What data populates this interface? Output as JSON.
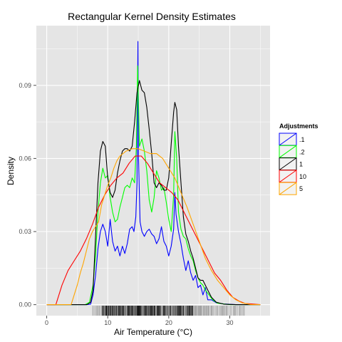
{
  "chart_data": {
    "type": "line",
    "title": "Rectangular Kernel Density Estimates",
    "xlabel": "Air Temperature (°C)",
    "ylabel": "Density",
    "xlim": [
      -1.7,
      36.6
    ],
    "ylim": [
      -0.0045,
      0.1145
    ],
    "x_ticks": [
      0,
      10,
      20,
      30
    ],
    "y_ticks": [
      0.0,
      0.03,
      0.06,
      0.09
    ],
    "y_tick_labels": [
      "0.00",
      "0.03",
      "0.06",
      "0.09"
    ],
    "grid": true,
    "legend": {
      "title": "Adjustments",
      "placement": "right"
    },
    "rug": {
      "x_range": [
        7.5,
        32.5
      ],
      "dense_range": [
        9,
        24
      ]
    },
    "series": [
      {
        "name": ".1",
        "color": "#0000ff",
        "points": [
          [
            0,
            0
          ],
          [
            6.5,
            0
          ],
          [
            7.2,
            0.0002
          ],
          [
            7.6,
            0.004
          ],
          [
            8.0,
            0.012
          ],
          [
            8.4,
            0.023
          ],
          [
            8.8,
            0.03
          ],
          [
            9.2,
            0.033
          ],
          [
            9.6,
            0.03
          ],
          [
            10.0,
            0.024
          ],
          [
            10.4,
            0.035
          ],
          [
            10.8,
            0.026
          ],
          [
            11.2,
            0.022
          ],
          [
            11.6,
            0.024
          ],
          [
            12.0,
            0.02
          ],
          [
            12.4,
            0.024
          ],
          [
            12.8,
            0.021
          ],
          [
            13.2,
            0.025
          ],
          [
            13.6,
            0.031
          ],
          [
            14.0,
            0.032
          ],
          [
            14.3,
            0.03
          ],
          [
            14.6,
            0.036
          ],
          [
            14.8,
            0.05
          ],
          [
            14.95,
            0.108
          ],
          [
            15.05,
            0.06
          ],
          [
            15.3,
            0.034
          ],
          [
            15.6,
            0.03
          ],
          [
            16.0,
            0.028
          ],
          [
            16.4,
            0.03
          ],
          [
            16.8,
            0.031
          ],
          [
            17.2,
            0.029
          ],
          [
            17.6,
            0.028
          ],
          [
            18.0,
            0.025
          ],
          [
            18.4,
            0.027
          ],
          [
            18.8,
            0.032
          ],
          [
            19.2,
            0.026
          ],
          [
            19.6,
            0.024
          ],
          [
            20.0,
            0.02
          ],
          [
            20.4,
            0.024
          ],
          [
            20.8,
            0.031
          ],
          [
            21.0,
            0.046
          ],
          [
            21.2,
            0.037
          ],
          [
            21.6,
            0.03
          ],
          [
            22.0,
            0.025
          ],
          [
            22.4,
            0.019
          ],
          [
            22.8,
            0.014
          ],
          [
            23.2,
            0.018
          ],
          [
            23.6,
            0.013
          ],
          [
            24.0,
            0.01
          ],
          [
            24.4,
            0.012
          ],
          [
            24.8,
            0.007
          ],
          [
            25.2,
            0.008
          ],
          [
            25.6,
            0.004
          ],
          [
            26.0,
            0.007
          ],
          [
            26.4,
            0.002
          ],
          [
            27.0,
            0.002
          ],
          [
            27.8,
            0.0008
          ],
          [
            29.0,
            0.0003
          ],
          [
            31.0,
            0
          ],
          [
            35,
            0
          ]
        ]
      },
      {
        "name": ".2",
        "color": "#00ff00",
        "points": [
          [
            0,
            0
          ],
          [
            6.3,
            0
          ],
          [
            7.0,
            0.001
          ],
          [
            7.6,
            0.008
          ],
          [
            8.0,
            0.02
          ],
          [
            8.4,
            0.038
          ],
          [
            8.8,
            0.05
          ],
          [
            9.2,
            0.056
          ],
          [
            9.6,
            0.052
          ],
          [
            10.0,
            0.053
          ],
          [
            10.4,
            0.044
          ],
          [
            10.8,
            0.038
          ],
          [
            11.2,
            0.034
          ],
          [
            11.6,
            0.035
          ],
          [
            12.0,
            0.04
          ],
          [
            12.4,
            0.044
          ],
          [
            12.8,
            0.048
          ],
          [
            13.2,
            0.049
          ],
          [
            13.6,
            0.048
          ],
          [
            14.0,
            0.052
          ],
          [
            14.4,
            0.05
          ],
          [
            14.7,
            0.065
          ],
          [
            14.9,
            0.098
          ],
          [
            15.2,
            0.065
          ],
          [
            15.6,
            0.068
          ],
          [
            16.0,
            0.063
          ],
          [
            16.4,
            0.055
          ],
          [
            16.8,
            0.043
          ],
          [
            17.2,
            0.038
          ],
          [
            17.6,
            0.044
          ],
          [
            18.0,
            0.055
          ],
          [
            18.4,
            0.052
          ],
          [
            18.8,
            0.047
          ],
          [
            19.2,
            0.048
          ],
          [
            19.6,
            0.042
          ],
          [
            20.0,
            0.035
          ],
          [
            20.4,
            0.03
          ],
          [
            20.8,
            0.045
          ],
          [
            21.0,
            0.071
          ],
          [
            21.3,
            0.06
          ],
          [
            21.6,
            0.038
          ],
          [
            22.0,
            0.031
          ],
          [
            22.4,
            0.028
          ],
          [
            22.8,
            0.027
          ],
          [
            23.2,
            0.023
          ],
          [
            23.6,
            0.02
          ],
          [
            24.0,
            0.018
          ],
          [
            24.4,
            0.014
          ],
          [
            24.8,
            0.011
          ],
          [
            25.2,
            0.009
          ],
          [
            25.6,
            0.008
          ],
          [
            26.0,
            0.006
          ],
          [
            26.6,
            0.004
          ],
          [
            27.2,
            0.002
          ],
          [
            28.0,
            0.0006
          ],
          [
            30.0,
            0
          ],
          [
            35,
            0
          ]
        ]
      },
      {
        "name": "1",
        "color": "#000000",
        "points": [
          [
            0,
            0
          ],
          [
            6.6,
            0
          ],
          [
            7.2,
            0.001
          ],
          [
            7.6,
            0.006
          ],
          [
            8.0,
            0.028
          ],
          [
            8.4,
            0.05
          ],
          [
            8.8,
            0.063
          ],
          [
            9.2,
            0.067
          ],
          [
            9.6,
            0.065
          ],
          [
            10.0,
            0.052
          ],
          [
            10.4,
            0.046
          ],
          [
            10.8,
            0.044
          ],
          [
            11.2,
            0.047
          ],
          [
            11.6,
            0.054
          ],
          [
            12.0,
            0.059
          ],
          [
            12.4,
            0.063
          ],
          [
            12.8,
            0.064
          ],
          [
            13.2,
            0.064
          ],
          [
            13.6,
            0.063
          ],
          [
            14.0,
            0.065
          ],
          [
            14.4,
            0.075
          ],
          [
            14.8,
            0.087
          ],
          [
            15.2,
            0.092
          ],
          [
            15.6,
            0.088
          ],
          [
            16.0,
            0.087
          ],
          [
            16.4,
            0.081
          ],
          [
            16.8,
            0.072
          ],
          [
            17.2,
            0.062
          ],
          [
            17.6,
            0.05
          ],
          [
            18.0,
            0.048
          ],
          [
            18.4,
            0.05
          ],
          [
            18.8,
            0.049
          ],
          [
            19.2,
            0.047
          ],
          [
            19.6,
            0.047
          ],
          [
            20.0,
            0.052
          ],
          [
            20.4,
            0.066
          ],
          [
            20.8,
            0.079
          ],
          [
            21.0,
            0.083
          ],
          [
            21.3,
            0.08
          ],
          [
            21.6,
            0.065
          ],
          [
            22.0,
            0.05
          ],
          [
            22.4,
            0.036
          ],
          [
            22.8,
            0.029
          ],
          [
            23.2,
            0.026
          ],
          [
            23.6,
            0.022
          ],
          [
            24.0,
            0.019
          ],
          [
            24.4,
            0.015
          ],
          [
            24.8,
            0.011
          ],
          [
            25.2,
            0.01
          ],
          [
            25.6,
            0.01
          ],
          [
            26.0,
            0.008
          ],
          [
            26.4,
            0.006
          ],
          [
            27.0,
            0.003
          ],
          [
            27.8,
            0.001
          ],
          [
            29.0,
            0.0002
          ],
          [
            31.0,
            0
          ],
          [
            35,
            0
          ]
        ]
      },
      {
        "name": "10",
        "color": "#ff0000",
        "points": [
          [
            0,
            0
          ],
          [
            1.5,
            0
          ],
          [
            2.0,
            0.004
          ],
          [
            2.5,
            0.008
          ],
          [
            3.5,
            0.014
          ],
          [
            4.5,
            0.018
          ],
          [
            5.5,
            0.022
          ],
          [
            6.5,
            0.027
          ],
          [
            7.5,
            0.033
          ],
          [
            8.5,
            0.04
          ],
          [
            9.5,
            0.045
          ],
          [
            10.5,
            0.049
          ],
          [
            11.5,
            0.052
          ],
          [
            12.5,
            0.054
          ],
          [
            13.5,
            0.058
          ],
          [
            14.5,
            0.061
          ],
          [
            15.5,
            0.061
          ],
          [
            16.5,
            0.058
          ],
          [
            17.5,
            0.054
          ],
          [
            18.5,
            0.05
          ],
          [
            19.5,
            0.048
          ],
          [
            20.5,
            0.046
          ],
          [
            21.5,
            0.043
          ],
          [
            22.5,
            0.038
          ],
          [
            23.5,
            0.033
          ],
          [
            24.5,
            0.028
          ],
          [
            25.5,
            0.023
          ],
          [
            26.5,
            0.018
          ],
          [
            27.5,
            0.013
          ],
          [
            28.5,
            0.01
          ],
          [
            29.5,
            0.006
          ],
          [
            30.5,
            0.003
          ],
          [
            31.5,
            0.0015
          ],
          [
            32.5,
            0.0005
          ],
          [
            35,
            0
          ]
        ]
      },
      {
        "name": "5",
        "color": "#ffa500",
        "points": [
          [
            0,
            0
          ],
          [
            4.0,
            0
          ],
          [
            4.5,
            0.004
          ],
          [
            5.0,
            0.008
          ],
          [
            5.5,
            0.013
          ],
          [
            6.0,
            0.017
          ],
          [
            6.5,
            0.022
          ],
          [
            7.0,
            0.027
          ],
          [
            7.5,
            0.03
          ],
          [
            8.0,
            0.032
          ],
          [
            8.5,
            0.034
          ],
          [
            9.0,
            0.041
          ],
          [
            9.5,
            0.045
          ],
          [
            10.0,
            0.049
          ],
          [
            10.5,
            0.052
          ],
          [
            11.0,
            0.056
          ],
          [
            11.5,
            0.059
          ],
          [
            12.0,
            0.061
          ],
          [
            12.5,
            0.062
          ],
          [
            13.0,
            0.063
          ],
          [
            14.0,
            0.064
          ],
          [
            15.0,
            0.064
          ],
          [
            16.0,
            0.063
          ],
          [
            17.0,
            0.062
          ],
          [
            18.0,
            0.062
          ],
          [
            19.0,
            0.06
          ],
          [
            20.0,
            0.056
          ],
          [
            21.0,
            0.052
          ],
          [
            22.0,
            0.046
          ],
          [
            23.0,
            0.04
          ],
          [
            24.0,
            0.033
          ],
          [
            25.0,
            0.026
          ],
          [
            26.0,
            0.019
          ],
          [
            27.0,
            0.014
          ],
          [
            28.0,
            0.01
          ],
          [
            29.0,
            0.007
          ],
          [
            30.0,
            0.004
          ],
          [
            31.0,
            0.002
          ],
          [
            32.0,
            0.0008
          ],
          [
            33.5,
            0
          ],
          [
            35,
            0
          ]
        ]
      }
    ]
  }
}
